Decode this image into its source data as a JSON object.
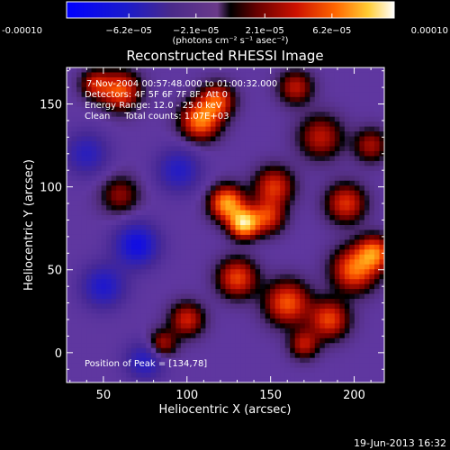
{
  "chart_data": {
    "type": "heatmap",
    "title": "Reconstructed RHESSI Image",
    "xlabel": "Heliocentric X (arcsec)",
    "ylabel": "Heliocentric Y (arcsec)",
    "xlim": [
      28,
      218
    ],
    "ylim": [
      -18,
      172
    ],
    "x_ticks": [
      50,
      100,
      150,
      200
    ],
    "y_ticks": [
      0,
      50,
      100,
      150
    ],
    "x_tick_labels": [
      "50",
      "100",
      "150",
      "200"
    ],
    "y_tick_labels": [
      "0",
      "50",
      "100",
      "150"
    ],
    "colorbar": {
      "range": [
        -0.0001,
        0.0001
      ],
      "tick_labels": [
        "-0.00010",
        "−6.2e−05",
        "−2.1e−05",
        "2.1e−05",
        "6.2e−05",
        "0.00010"
      ],
      "tick_values": [
        -0.0001,
        -6.2e-05,
        -2.1e-05,
        2.1e-05,
        6.2e-05,
        0.0001
      ],
      "units_label": "(photons cm⁻² s⁻¹ asec⁻²)"
    },
    "annotations": {
      "time_range": "7-Nov-2004 00:57:48.000 to 01:00:32.000",
      "detectors": "Detectors: 4F 5F 6F 7F 8F, Att 0",
      "energy_range": "Energy Range: 12.0 - 25.0 keV",
      "clean": "Clean     Total counts: 1.07E+03",
      "peak": "Position of Peak = [134,78]"
    },
    "footer_timestamp": "19-Jun-2013 16:32",
    "peak_position": [
      134,
      78
    ],
    "blobs": [
      {
        "x": 134,
        "y": 78,
        "amp": 1.0,
        "sigma": 6
      },
      {
        "x": 124,
        "y": 90,
        "amp": 0.85,
        "sigma": 7
      },
      {
        "x": 108,
        "y": 140,
        "amp": 0.75,
        "sigma": 8
      },
      {
        "x": 118,
        "y": 152,
        "amp": 0.6,
        "sigma": 7
      },
      {
        "x": 60,
        "y": 158,
        "amp": 0.65,
        "sigma": 8
      },
      {
        "x": 45,
        "y": 162,
        "amp": 0.45,
        "sigma": 6
      },
      {
        "x": 165,
        "y": 160,
        "amp": 0.45,
        "sigma": 7
      },
      {
        "x": 152,
        "y": 100,
        "amp": 0.55,
        "sigma": 8
      },
      {
        "x": 148,
        "y": 82,
        "amp": 0.55,
        "sigma": 7
      },
      {
        "x": 130,
        "y": 45,
        "amp": 0.6,
        "sigma": 8
      },
      {
        "x": 160,
        "y": 30,
        "amp": 0.65,
        "sigma": 9
      },
      {
        "x": 185,
        "y": 20,
        "amp": 0.6,
        "sigma": 8
      },
      {
        "x": 200,
        "y": 50,
        "amp": 0.7,
        "sigma": 9
      },
      {
        "x": 212,
        "y": 60,
        "amp": 0.7,
        "sigma": 7
      },
      {
        "x": 195,
        "y": 90,
        "amp": 0.55,
        "sigma": 8
      },
      {
        "x": 100,
        "y": 20,
        "amp": 0.5,
        "sigma": 7
      },
      {
        "x": 85,
        "y": 5,
        "amp": 0.45,
        "sigma": 6
      },
      {
        "x": 170,
        "y": 5,
        "amp": 0.45,
        "sigma": 6
      },
      {
        "x": 60,
        "y": 95,
        "amp": 0.35,
        "sigma": 8
      },
      {
        "x": 180,
        "y": 130,
        "amp": 0.45,
        "sigma": 9
      },
      {
        "x": 210,
        "y": 125,
        "amp": 0.4,
        "sigma": 7
      },
      {
        "x": 70,
        "y": 65,
        "amp": -0.65,
        "sigma": 9
      },
      {
        "x": 50,
        "y": 40,
        "amp": -0.5,
        "sigma": 9
      },
      {
        "x": 95,
        "y": 110,
        "amp": -0.45,
        "sigma": 9
      },
      {
        "x": 40,
        "y": 120,
        "amp": -0.4,
        "sigma": 9
      },
      {
        "x": 75,
        "y": -5,
        "amp": -0.45,
        "sigma": 8
      }
    ]
  }
}
